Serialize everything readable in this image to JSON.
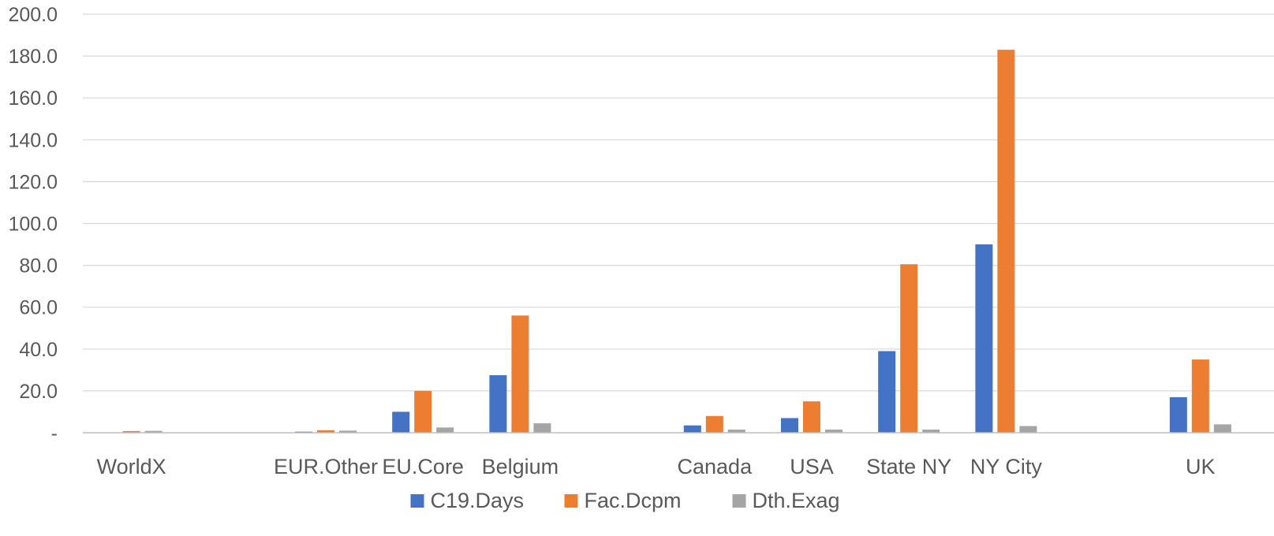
{
  "chart_data": {
    "type": "bar",
    "title": "",
    "xlabel": "",
    "ylabel": "",
    "ylim": [
      0,
      200
    ],
    "y_ticks": [
      "-",
      "20.0",
      "40.0",
      "60.0",
      "80.0",
      "100.0",
      "120.0",
      "140.0",
      "160.0",
      "180.0",
      "200.0"
    ],
    "grid": true,
    "legend_position": "bottom",
    "categories": [
      "WorldX",
      "",
      "EUR.Other",
      "EU.Core",
      "Belgium",
      "",
      "Canada",
      "USA",
      "State NY",
      "NY City",
      "",
      "UK"
    ],
    "series": [
      {
        "name": "C19.Days",
        "color": "#4472C4",
        "values": [
          0.0,
          0,
          0.5,
          10.0,
          27.5,
          0,
          3.5,
          7.0,
          39.0,
          90.0,
          0,
          17.0
        ]
      },
      {
        "name": "Fac.Dcpm",
        "color": "#ED7D31",
        "values": [
          0.8,
          0,
          1.2,
          20.0,
          56.0,
          0,
          8.0,
          15.0,
          80.5,
          183.0,
          0,
          35.0
        ]
      },
      {
        "name": "Dth.Exag",
        "color": "#A5A5A5",
        "values": [
          0.9,
          0,
          1.0,
          2.5,
          4.5,
          0,
          1.5,
          1.5,
          1.5,
          3.2,
          0,
          4.0
        ]
      }
    ]
  }
}
